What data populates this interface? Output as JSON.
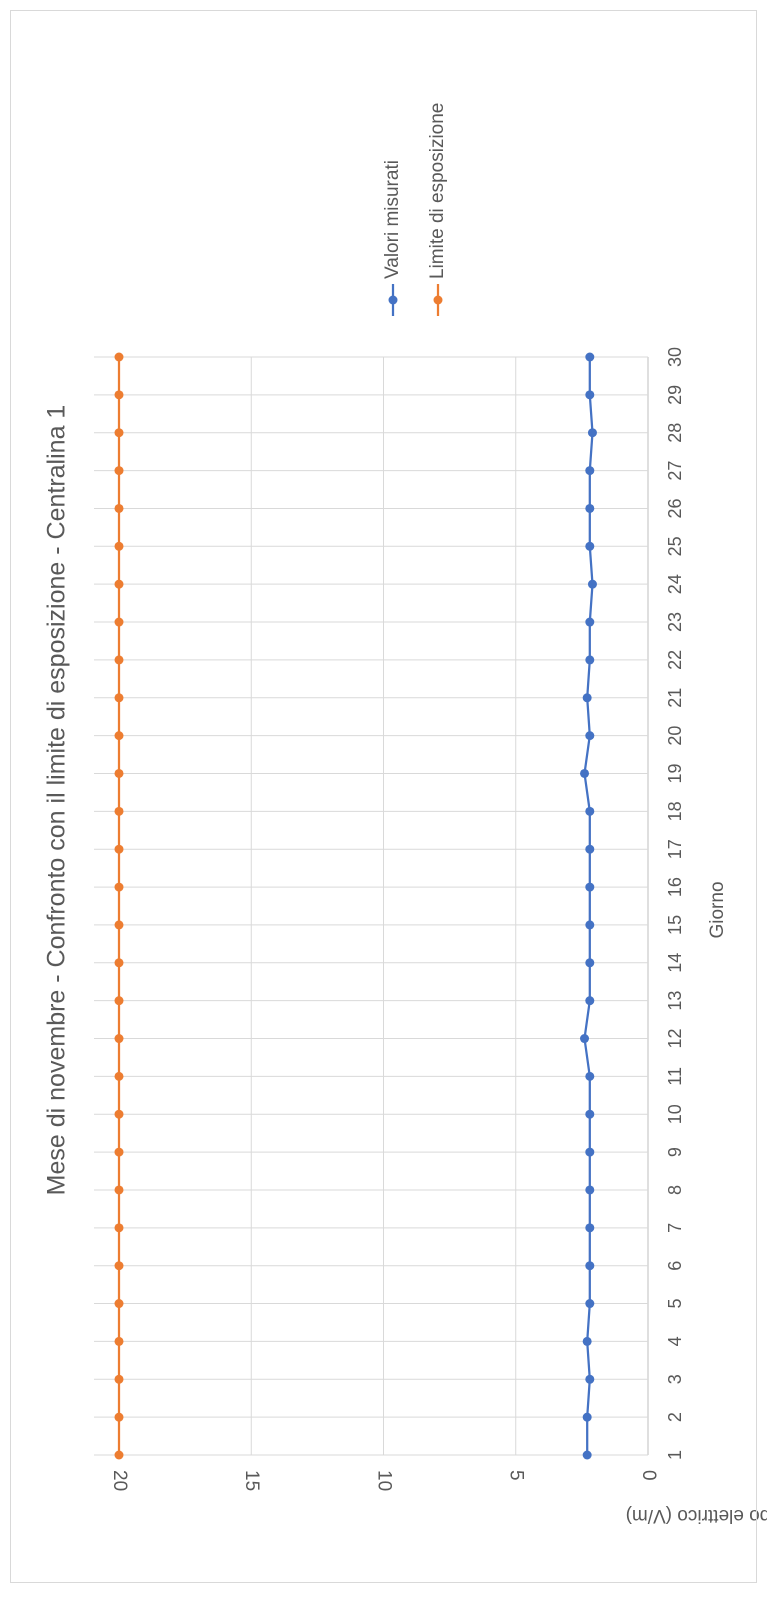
{
  "chart_data": {
    "type": "line",
    "title": "Mese di novembre - Confronto con il limite di esposizione - Centralina 1",
    "xlabel": "Giorno",
    "ylabel": "Campo elettrico (V/m)",
    "ylim": [
      0,
      20
    ],
    "yticks": [
      0,
      5,
      10,
      15,
      20
    ],
    "grid": true,
    "legend_position": "right",
    "orientation": "rotated 90° clockwise",
    "categories": [
      "1",
      "2",
      "3",
      "4",
      "5",
      "6",
      "7",
      "8",
      "9",
      "10",
      "11",
      "12",
      "13",
      "14",
      "15",
      "16",
      "17",
      "18",
      "19",
      "20",
      "21",
      "22",
      "23",
      "24",
      "25",
      "26",
      "27",
      "28",
      "29",
      "30"
    ],
    "series": [
      {
        "name": "Valori misurati",
        "color": "#4472C4",
        "values": [
          2.3,
          2.3,
          2.2,
          2.3,
          2.2,
          2.2,
          2.2,
          2.2,
          2.2,
          2.2,
          2.2,
          2.4,
          2.2,
          2.2,
          2.2,
          2.2,
          2.2,
          2.2,
          2.4,
          2.2,
          2.3,
          2.2,
          2.2,
          2.1,
          2.2,
          2.2,
          2.2,
          2.1,
          2.2,
          2.2
        ]
      },
      {
        "name": "Limite di esposizione",
        "color": "#ED7D31",
        "values": [
          20,
          20,
          20,
          20,
          20,
          20,
          20,
          20,
          20,
          20,
          20,
          20,
          20,
          20,
          20,
          20,
          20,
          20,
          20,
          20,
          20,
          20,
          20,
          20,
          20,
          20,
          20,
          20,
          20,
          20
        ]
      }
    ]
  }
}
